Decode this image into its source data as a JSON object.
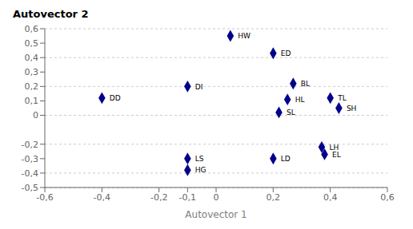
{
  "chart_data": {
    "type": "scatter",
    "title": "Autovector 2",
    "x_label": "Autovector 1",
    "point_labels": [
      "HW",
      "ED",
      "DI",
      "BL",
      "DD",
      "HL",
      "TL",
      "SL",
      "SH",
      "LH",
      "EL",
      "LS",
      "LD",
      "HG"
    ],
    "x": [
      0.05,
      0.2,
      -0.1,
      0.27,
      -0.4,
      0.25,
      0.4,
      0.22,
      0.43,
      0.37,
      0.38,
      -0.1,
      0.2,
      -0.1
    ],
    "values": [
      0.55,
      0.43,
      0.2,
      0.22,
      0.12,
      0.11,
      0.12,
      0.02,
      0.05,
      -0.22,
      -0.27,
      -0.3,
      -0.3,
      -0.38
    ],
    "color": "#00008B",
    "marker": "diamond",
    "xlim": [
      -0.6,
      0.6
    ],
    "ylim": [
      -0.5,
      0.6
    ],
    "xticks": [
      {
        "value": -0.6,
        "label": "-0,6"
      },
      {
        "value": -0.4,
        "label": "-0,4"
      },
      {
        "value": -0.2,
        "label": "-0,2"
      },
      {
        "value": -0.1,
        "label": "-0,1"
      },
      0,
      {
        "value": 0.2,
        "label": "0,2"
      },
      {
        "value": 0.4,
        "label": "0,4"
      },
      {
        "value": 0.6,
        "label": "0,6"
      }
    ],
    "yticks": [
      {
        "value": -0.5,
        "label": "-0,5"
      },
      {
        "value": -0.4,
        "label": "-0,4"
      },
      {
        "value": -0.3,
        "label": "-0,3"
      },
      {
        "value": -0.2,
        "label": "-0,2"
      },
      0,
      {
        "value": 0.1,
        "label": "0,1"
      },
      {
        "value": 0.2,
        "label": "0,2"
      },
      {
        "value": 0.3,
        "label": "0,3"
      },
      {
        "value": 0.4,
        "label": "0,4"
      },
      {
        "value": 0.5,
        "label": "0,5"
      },
      {
        "value": 0.6,
        "label": "0,6"
      }
    ],
    "grid": "y"
  }
}
